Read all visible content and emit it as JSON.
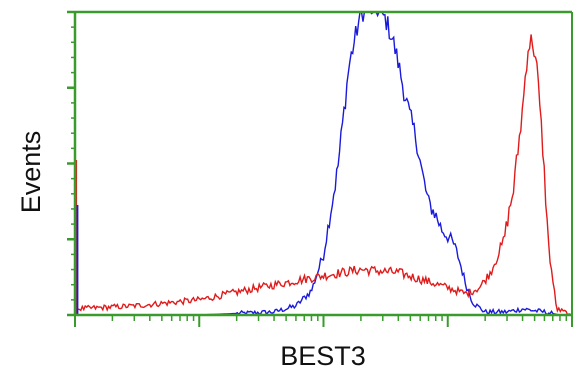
{
  "chart_data": {
    "type": "line",
    "title": "",
    "xlabel": "BEST3",
    "ylabel": "Events",
    "xscale": "log",
    "xlim": [
      1,
      10000
    ],
    "ylim": [
      0,
      100
    ],
    "grid": false,
    "legend": "none",
    "colors": {
      "axis": "#3a9a2e",
      "blue_series": "#1a1adb",
      "red_series": "#e01b1b"
    },
    "series": [
      {
        "color": "#1a1adb",
        "x": [
          1,
          10,
          40,
          60,
          80,
          100,
          130,
          160,
          200,
          240,
          280,
          320,
          360,
          400,
          450,
          500,
          560,
          620,
          700,
          800,
          900,
          1000,
          1100,
          1200,
          1300,
          1400,
          1600,
          2000,
          3000,
          4000,
          6000,
          8000,
          10000
        ],
        "y": [
          0,
          0,
          1,
          3,
          8,
          20,
          48,
          82,
          100,
          101,
          101,
          97,
          91,
          83,
          73,
          65,
          58,
          47,
          37,
          33,
          28,
          26,
          24,
          20,
          15,
          10,
          4,
          1,
          1,
          2,
          1,
          0,
          0
        ]
      },
      {
        "color": "#e01b1b",
        "x": [
          1,
          3,
          10,
          30,
          100,
          200,
          400,
          700,
          1000,
          1400,
          1800,
          2200,
          2800,
          3400,
          4000,
          4400,
          4800,
          5200,
          5800,
          6500,
          7500,
          10000
        ],
        "y": [
          2,
          3,
          5,
          9,
          13,
          15,
          14,
          11,
          9,
          7,
          9,
          14,
          24,
          42,
          68,
          88,
          91,
          82,
          56,
          22,
          2,
          0
        ]
      }
    ]
  }
}
